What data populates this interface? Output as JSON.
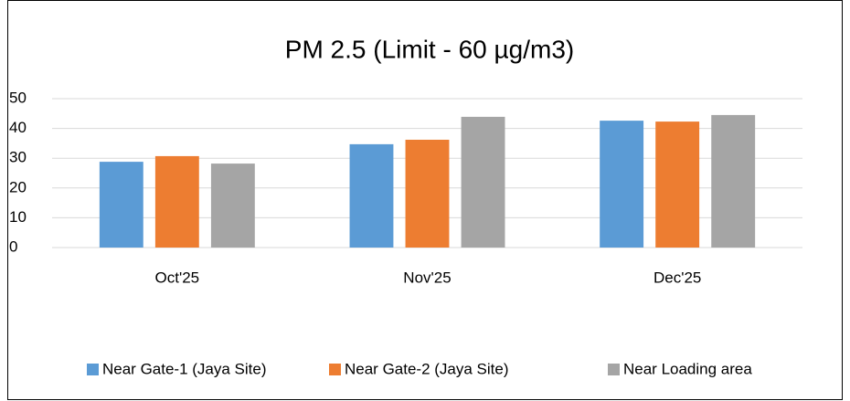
{
  "chart_data": {
    "type": "bar",
    "title": "PM 2.5 (Limit - 60 µg/m3)",
    "categories": [
      "Oct'25",
      "Nov'25",
      "Dec'25"
    ],
    "series": [
      {
        "name": "Near  Gate-1 (Jaya Site)",
        "color": "#5b9bd5",
        "values": [
          28.8,
          34.7,
          42.6
        ]
      },
      {
        "name": "Near  Gate-2 (Jaya Site)",
        "color": "#ed7d31",
        "values": [
          30.7,
          36.2,
          42.3
        ]
      },
      {
        "name": "Near Loading area",
        "color": "#a5a5a5",
        "values": [
          28.2,
          43.9,
          44.5
        ]
      }
    ],
    "ylim": [
      0,
      50
    ],
    "yticks": [
      0,
      10,
      20,
      30,
      40,
      50
    ],
    "grid": true,
    "legend": "bottom"
  }
}
